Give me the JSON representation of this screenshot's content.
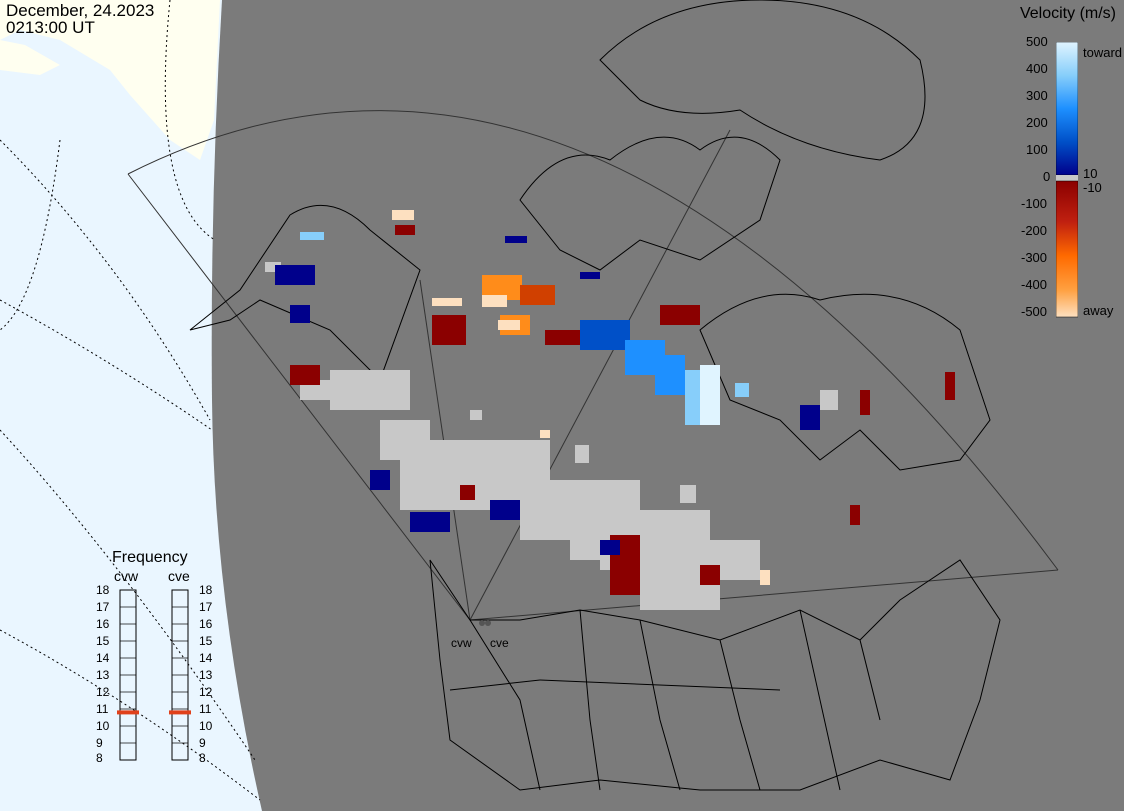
{
  "header": {
    "date": "December, 24.2023",
    "time": "0213:00 UT"
  },
  "legend": {
    "title": "Velocity (m/s)",
    "ticks": [
      "500",
      "400",
      "300",
      "200",
      "100",
      "10",
      "0",
      "-10",
      "-100",
      "-200",
      "-300",
      "-400",
      "-500"
    ],
    "toward_label": "toward",
    "away_label": "away",
    "colors": [
      "#fde0c0",
      "#ff8c1a",
      "#d04000",
      "#8b0000",
      "#00008b",
      "#0050c8",
      "#1e90ff",
      "#87cefa",
      "#e0f4ff"
    ]
  },
  "frequency": {
    "title": "Frequency",
    "radars": [
      {
        "name": "cvw",
        "value_mhz": 11.0
      },
      {
        "name": "cve",
        "value_mhz": 11.0
      }
    ],
    "scale": [
      "18",
      "17",
      "16",
      "15",
      "14",
      "13",
      "12",
      "11",
      "10",
      "9",
      "8"
    ],
    "marker_color": "#e0401a"
  },
  "map": {
    "radar_labels": [
      "cvw",
      "cve"
    ],
    "colors": {
      "ocean": "#eaf6ff",
      "land": "#fffff0",
      "night_shade": "#7b7b7b",
      "ground_scatter": "#c8c8c8"
    }
  }
}
